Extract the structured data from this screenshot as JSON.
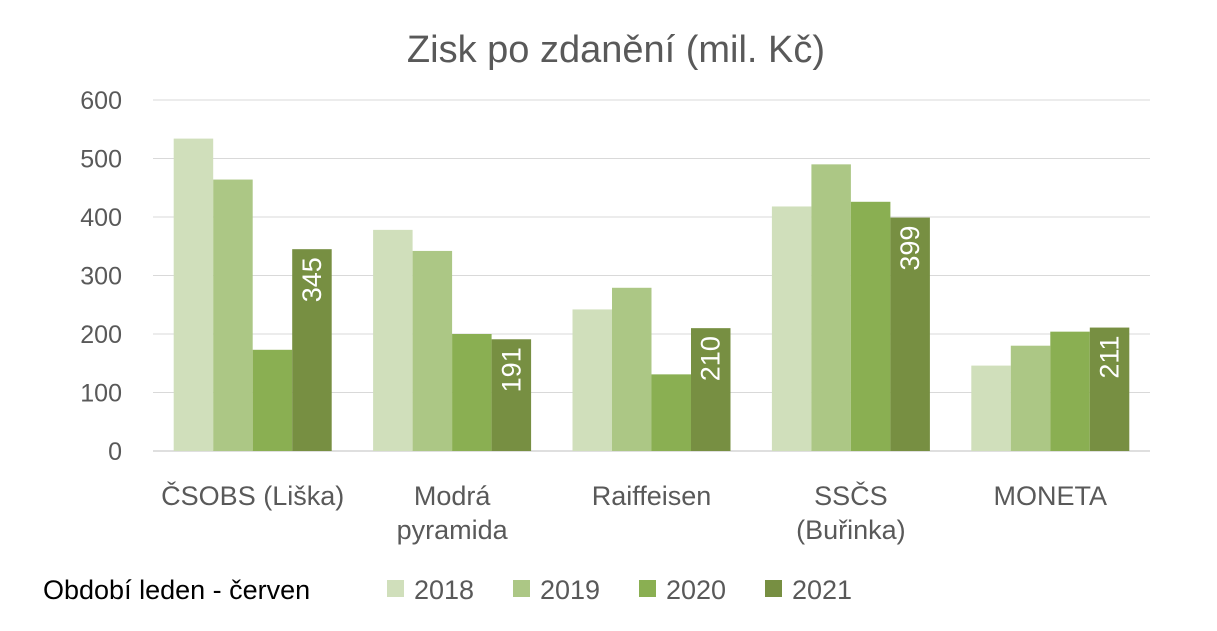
{
  "chart_data": {
    "type": "bar",
    "title": "Zisk po zdanění (mil. Kč)",
    "categories": [
      "ČSOBS (Liška)",
      "Modrá pyramida",
      "Raiffeisen",
      "SSČS (Buřinka)",
      "MONETA"
    ],
    "category_lines": [
      [
        "ČSOBS (Liška)"
      ],
      [
        "Modrá",
        "pyramida"
      ],
      [
        "Raiffeisen"
      ],
      [
        "SSČS",
        "(Buřinka)"
      ],
      [
        "MONETA"
      ]
    ],
    "series": [
      {
        "name": "2018",
        "color": "#d0dfbb",
        "values": [
          534,
          378,
          242,
          418,
          146
        ]
      },
      {
        "name": "2019",
        "color": "#acc785",
        "values": [
          464,
          342,
          279,
          490,
          180
        ]
      },
      {
        "name": "2020",
        "color": "#8aaf52",
        "values": [
          173,
          200,
          131,
          426,
          204
        ]
      },
      {
        "name": "2021",
        "color": "#778f42",
        "values": [
          345,
          191,
          210,
          399,
          211
        ],
        "data_labels": true
      }
    ],
    "ylim": [
      0,
      600
    ],
    "yticks": [
      0,
      100,
      200,
      300,
      400,
      500,
      600
    ],
    "grid": true,
    "legend_position": "bottom",
    "legend_note": "Období leden - červen"
  }
}
